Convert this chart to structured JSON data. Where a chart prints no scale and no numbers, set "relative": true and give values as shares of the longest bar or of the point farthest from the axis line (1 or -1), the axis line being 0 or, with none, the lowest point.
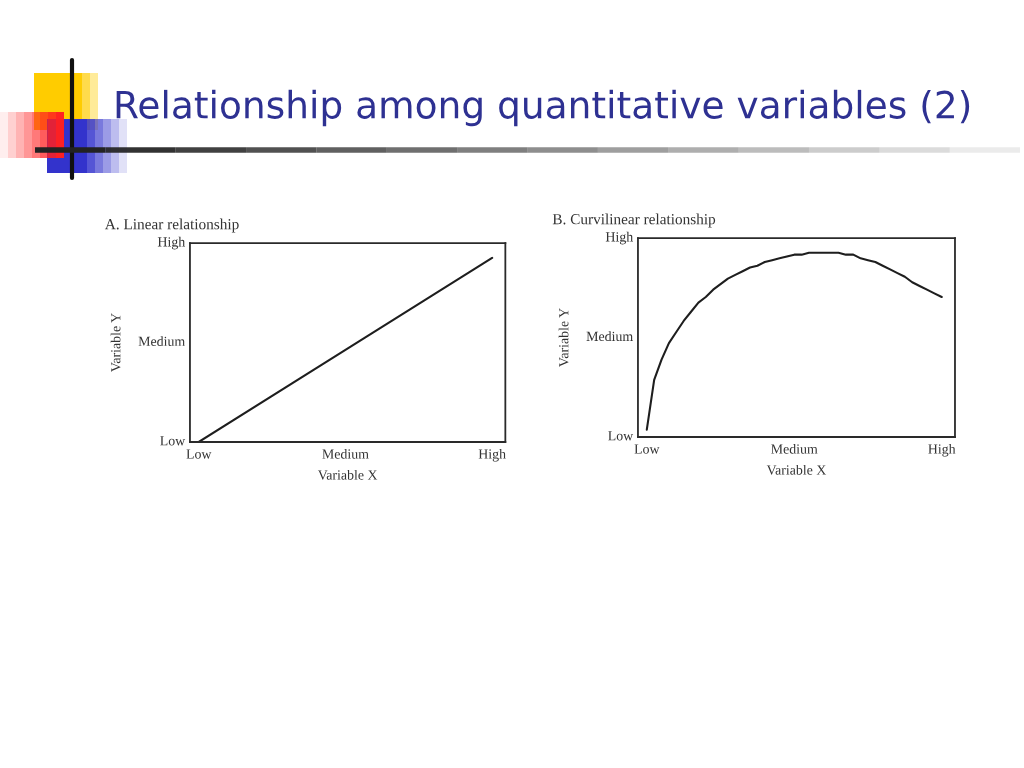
{
  "chart_data": [
    {
      "type": "other",
      "title": "Relationship among quantitative variables (2)"
    },
    {
      "type": "line",
      "title": "A. Linear relationship",
      "xlabel": "Variable X",
      "ylabel": "Variable Y",
      "relative": true,
      "categories": [
        "Low",
        "Medium",
        "High"
      ],
      "series": [
        {
          "color": "#1e1e1e",
          "values": [
            0,
            0.5,
            1
          ]
        }
      ],
      "annotations": [
        "Low",
        "Medium",
        "High"
      ]
    },
    {
      "type": "line",
      "title": "B. Curvilinear relationship",
      "xlabel": "Variable X",
      "ylabel": "Variable Y",
      "relative": true,
      "categories": [
        "Low",
        null,
        null,
        null,
        null,
        null,
        null,
        null,
        null,
        null,
        null,
        null,
        null,
        null,
        null,
        null,
        null,
        null,
        null,
        null,
        "Medium",
        null,
        null,
        null,
        null,
        null,
        null,
        null,
        null,
        null,
        null,
        null,
        null,
        null,
        null,
        null,
        null,
        null,
        null,
        null,
        "High"
      ],
      "series": [
        {
          "color": "#1e1e1e",
          "values": [
            0.04,
            0.31,
            0.42,
            0.51,
            0.57,
            0.63,
            0.68,
            0.73,
            0.76,
            0.8,
            0.83,
            0.86,
            0.88,
            0.9,
            0.92,
            0.93,
            0.95,
            0.96,
            0.97,
            0.98,
            0.99,
            0.99,
            1,
            1,
            1,
            1,
            1,
            0.99,
            0.99,
            0.97,
            0.96,
            0.95,
            0.93,
            0.91,
            0.89,
            0.87,
            0.84,
            0.82,
            0.8,
            0.78,
            0.76
          ]
        }
      ],
      "annotations": [
        "Low",
        "Medium",
        "High"
      ]
    }
  ]
}
